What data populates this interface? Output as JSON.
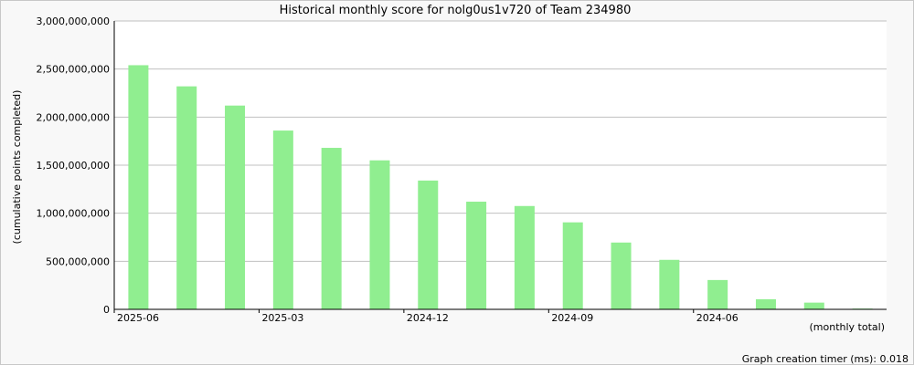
{
  "chart_data": {
    "type": "bar",
    "title": "Historical monthly score for nolg0us1v720 of Team 234980",
    "ylabel": "(cumulative points completed)",
    "xlabel": "(monthly total)",
    "footer": "Graph creation timer (ms): 0.018",
    "ylim": [
      0,
      3000000000
    ],
    "yticks": [
      0,
      500000000,
      1000000000,
      1500000000,
      2000000000,
      2500000000,
      3000000000
    ],
    "ytick_labels": [
      "0",
      "500,000,000",
      "1,000,000,000",
      "1,500,000,000",
      "2,000,000,000",
      "2,500,000,000",
      "3,000,000,000"
    ],
    "categories": [
      "2025-06",
      "2025-05",
      "2025-04",
      "2025-03",
      "2025-02",
      "2025-01",
      "2024-12",
      "2024-11",
      "2024-10",
      "2024-09",
      "2024-08",
      "2024-07",
      "2024-06",
      "2024-05",
      "2024-04",
      "2024-03"
    ],
    "xtick_labels": [
      {
        "index": 0,
        "label": "2025-06"
      },
      {
        "index": 3,
        "label": "2025-03"
      },
      {
        "index": 6,
        "label": "2024-12"
      },
      {
        "index": 9,
        "label": "2024-09"
      },
      {
        "index": 12,
        "label": "2024-06"
      }
    ],
    "values": [
      2540000000,
      2320000000,
      2120000000,
      1860000000,
      1680000000,
      1550000000,
      1340000000,
      1120000000,
      1075000000,
      905000000,
      695000000,
      515000000,
      305000000,
      105000000,
      70000000,
      8000000
    ],
    "bar_color": "#90ee90",
    "grid": true,
    "legend": "none"
  }
}
